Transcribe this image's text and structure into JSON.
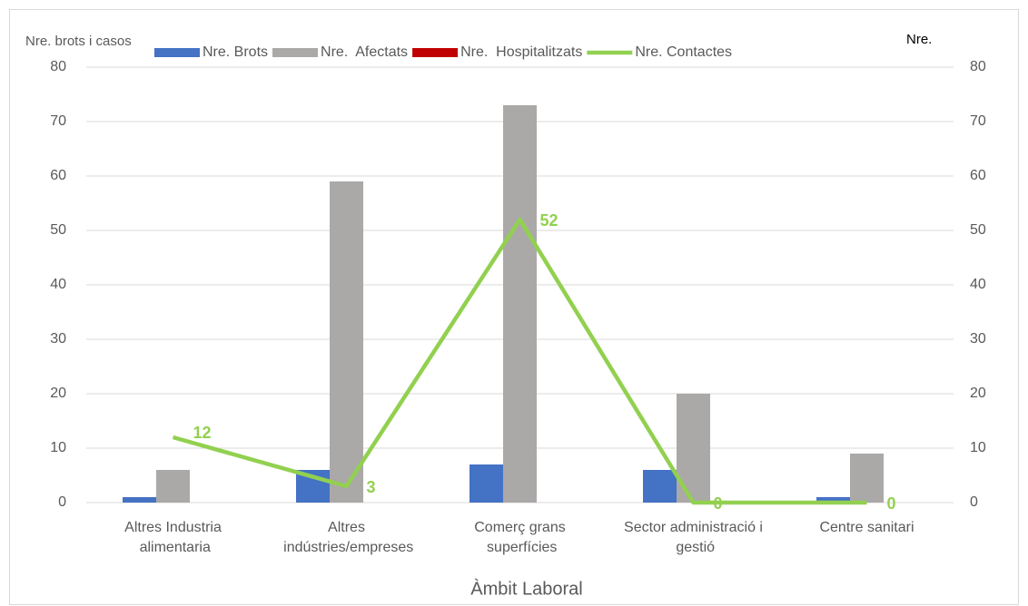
{
  "chart_data": {
    "type": "bar",
    "y_label": "Nre. brots i casos",
    "y2_label": "Nre.",
    "x_label": "Àmbit Laboral",
    "categories": [
      "Altres Industria alimentaria",
      "Altres indústries/empreses",
      "Comerç grans superfícies",
      "Sector administració i gestió",
      "Centre sanitari"
    ],
    "series": [
      {
        "name": "Nre. Brots",
        "color": "#4472c4",
        "values": [
          1,
          6,
          7,
          6,
          1
        ]
      },
      {
        "name": "Nre.  Afectats",
        "color": "#aba8a8",
        "values": [
          6,
          59,
          73,
          20,
          9
        ]
      },
      {
        "name": "Nre.  Hospitalitzats",
        "color": "#c00000",
        "values": [
          0,
          0,
          0,
          0,
          0
        ]
      },
      {
        "name": "Nre. Contactes",
        "color": "#92d050",
        "type": "line",
        "axis": "y2",
        "values": [
          12,
          3,
          52,
          0,
          0
        ],
        "data_labels": true
      }
    ],
    "ylim": [
      0,
      80
    ],
    "yticks": [
      0,
      10,
      20,
      30,
      40,
      50,
      60,
      70,
      80
    ],
    "y2lim": [
      0,
      80
    ],
    "y2ticks": [
      0,
      10,
      20,
      30,
      40,
      50,
      60,
      70,
      80
    ],
    "grid": true,
    "legend": "top"
  }
}
